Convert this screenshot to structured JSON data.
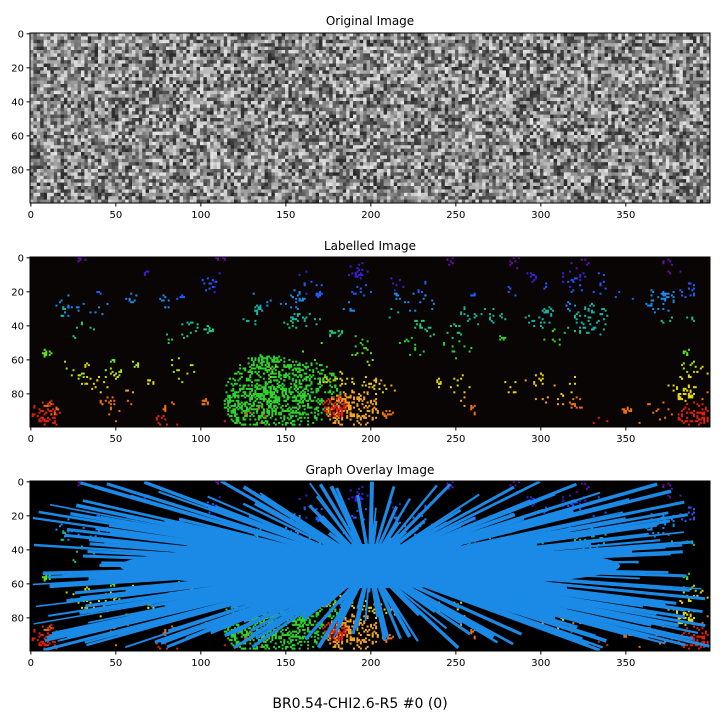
{
  "suptitle": "BR0.54-CHI2.6-R5 #0 (0)",
  "chart_data": [
    {
      "type": "heatmap",
      "title": "Original Image",
      "colormap": "grayscale-noise",
      "image_shape": [
        100,
        400
      ],
      "x_ticks": [
        0,
        50,
        100,
        150,
        200,
        250,
        300,
        350
      ],
      "y_ticks": [
        0,
        20,
        40,
        60,
        80
      ],
      "xlim": [
        0,
        400
      ],
      "ylim": [
        100,
        0
      ]
    },
    {
      "type": "heatmap",
      "title": "Labelled Image",
      "colormap": "label-rainbow-on-black",
      "image_shape": [
        100,
        400
      ],
      "x_ticks": [
        0,
        50,
        100,
        150,
        200,
        250,
        300,
        350
      ],
      "y_ticks": [
        0,
        20,
        40,
        60,
        80
      ],
      "xlim": [
        0,
        400
      ],
      "ylim": [
        100,
        0
      ]
    },
    {
      "type": "heatmap",
      "title": "Graph Overlay Image",
      "colormap": "label-rainbow-on-black with blue graph edges",
      "image_shape": [
        100,
        400
      ],
      "graph_center": [
        200,
        50
      ],
      "edge_color": "#1a8ae6",
      "x_ticks": [
        0,
        50,
        100,
        150,
        200,
        250,
        300,
        350
      ],
      "y_ticks": [
        0,
        20,
        40,
        60,
        80
      ],
      "xlim": [
        0,
        400
      ],
      "ylim": [
        100,
        0
      ]
    }
  ]
}
